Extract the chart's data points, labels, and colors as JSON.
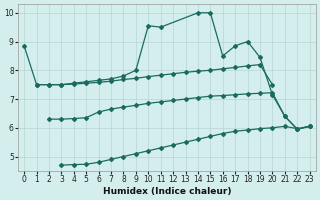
{
  "lineA_x": [
    0,
    1,
    2,
    3,
    4,
    5,
    6,
    7,
    8,
    9,
    10,
    11,
    14,
    15,
    16,
    17,
    18,
    19,
    20,
    21,
    22,
    23
  ],
  "lineA_y": [
    8.85,
    7.5,
    7.5,
    7.5,
    7.55,
    7.6,
    7.65,
    7.7,
    7.8,
    8.0,
    9.55,
    9.5,
    10.0,
    10.0,
    8.5,
    8.85,
    9.0,
    8.45,
    7.15,
    6.4,
    5.95,
    6.05
  ],
  "lineB_x": [
    1,
    2,
    3,
    4,
    5,
    6,
    7,
    8,
    9,
    10,
    11,
    12,
    13,
    14,
    15,
    16,
    17,
    18,
    19,
    20
  ],
  "lineB_y": [
    7.5,
    7.5,
    7.5,
    7.52,
    7.55,
    7.58,
    7.62,
    7.68,
    7.72,
    7.78,
    7.83,
    7.88,
    7.93,
    7.97,
    8.0,
    8.05,
    8.1,
    8.15,
    8.2,
    7.5
  ],
  "lineC_x": [
    2,
    3,
    4,
    5,
    6,
    7,
    8,
    9,
    10,
    11,
    12,
    13,
    14,
    15,
    16,
    17,
    18,
    19,
    20,
    21,
    22,
    23
  ],
  "lineC_y": [
    6.3,
    6.3,
    6.32,
    6.35,
    6.55,
    6.65,
    6.72,
    6.78,
    6.85,
    6.9,
    6.95,
    7.0,
    7.05,
    7.1,
    7.12,
    7.15,
    7.18,
    7.2,
    7.22,
    6.4,
    5.95,
    6.05
  ],
  "lineD_x": [
    3,
    4,
    5,
    6,
    7,
    8,
    9,
    10,
    11,
    12,
    13,
    14,
    15,
    16,
    17,
    18,
    19,
    20,
    21,
    22,
    23
  ],
  "lineD_y": [
    4.7,
    4.72,
    4.73,
    4.8,
    4.9,
    5.0,
    5.1,
    5.2,
    5.3,
    5.4,
    5.5,
    5.6,
    5.7,
    5.8,
    5.88,
    5.92,
    5.97,
    6.0,
    6.05,
    5.97,
    6.05
  ],
  "color": "#1a6b5e",
  "bg_color": "#d4eeee",
  "grid_color_major": "#b8d4d4",
  "grid_color_minor": "#c8e0e0",
  "xlabel": "Humidex (Indice chaleur)",
  "xlim": [
    -0.5,
    23.5
  ],
  "ylim": [
    4.5,
    10.3
  ],
  "yticks": [
    5,
    6,
    7,
    8,
    9,
    10
  ],
  "xticks": [
    0,
    1,
    2,
    3,
    4,
    5,
    6,
    7,
    8,
    9,
    10,
    11,
    12,
    13,
    14,
    15,
    16,
    17,
    18,
    19,
    20,
    21,
    22,
    23
  ]
}
